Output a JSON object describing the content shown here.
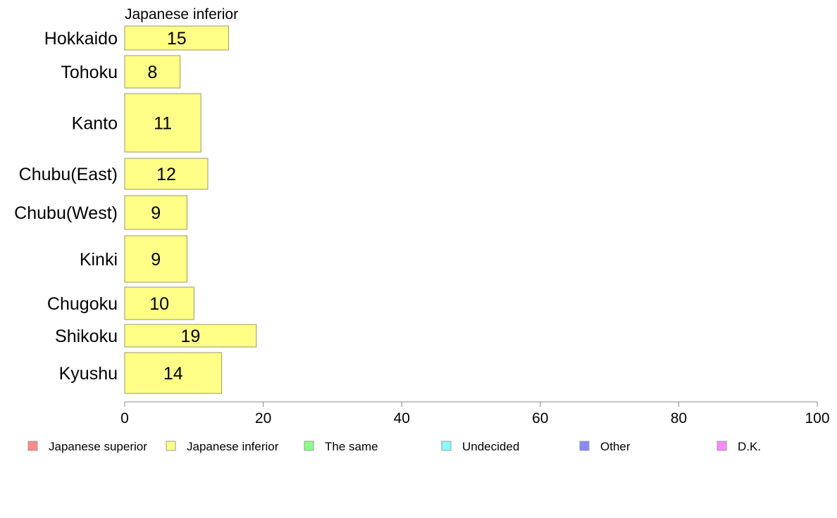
{
  "chart_data": {
    "type": "bar",
    "orientation": "horizontal",
    "title": "Japanese inferior",
    "categories": [
      "Hokkaido",
      "Tohoku",
      "Kanto",
      "Chubu(East)",
      "Chubu(West)",
      "Kinki",
      "Chugoku",
      "Shikoku",
      "Kyushu"
    ],
    "values": [
      15,
      8,
      11,
      12,
      9,
      9,
      10,
      19,
      14
    ],
    "data_labels": [
      "15",
      "8",
      "11",
      "12",
      "9",
      "9",
      "10",
      "19",
      "14"
    ],
    "xlim": [
      0,
      100
    ],
    "xticks": [
      0,
      20,
      40,
      60,
      80,
      100
    ],
    "xtick_labels": [
      "0",
      "20",
      "40",
      "60",
      "80",
      "100"
    ],
    "grid": false,
    "bar_color": "#ffff88",
    "bar_edge_color": "#999966",
    "legend_position": "bottom",
    "legend": [
      {
        "label": "Japanese superior",
        "color": "#ff8888"
      },
      {
        "label": "Japanese inferior",
        "color": "#ffff88"
      },
      {
        "label": "The same",
        "color": "#88ff88"
      },
      {
        "label": "Undecided",
        "color": "#88ffff"
      },
      {
        "label": "Other",
        "color": "#8888ff"
      },
      {
        "label": "D.K.",
        "color": "#ff88ff"
      }
    ]
  }
}
